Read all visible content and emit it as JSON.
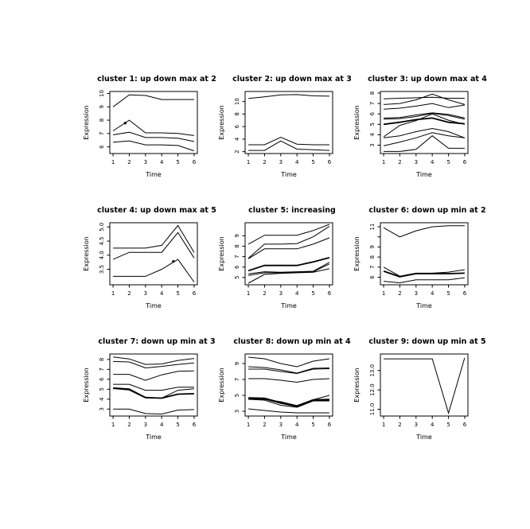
{
  "figure": {
    "background": "#ffffff",
    "line_color": "#000000",
    "text_color": "#000000"
  },
  "chart_data": [
    {
      "type": "line",
      "title": "cluster 1: up down max at 2",
      "xlabel": "Time",
      "ylabel": "Expression",
      "x": [
        1,
        2,
        3,
        4,
        5,
        6
      ],
      "xticks": [
        "1",
        "2",
        "3",
        "4",
        "5",
        "6"
      ],
      "yticks": [
        6,
        7,
        8,
        9,
        10
      ],
      "ytick_labels": [
        "6",
        "7",
        "8",
        "9",
        "10"
      ],
      "xlim": [
        0.8,
        6.2
      ],
      "ylim": [
        5.5,
        10.15
      ],
      "grid": false,
      "series": [
        {
          "name": "line-1",
          "values": [
            9.0,
            9.9,
            9.85,
            9.55,
            9.55,
            9.55
          ],
          "width": 1
        },
        {
          "name": "line-2",
          "values": [
            7.2,
            8.0,
            7.05,
            7.05,
            7.0,
            6.85
          ],
          "width": 1
        },
        {
          "name": "line-3",
          "values": [
            6.9,
            7.1,
            6.7,
            6.7,
            6.65,
            6.4
          ],
          "width": 1
        },
        {
          "name": "line-4",
          "values": [
            6.35,
            6.45,
            6.15,
            6.15,
            6.1,
            5.7
          ],
          "width": 1
        }
      ],
      "dots": [
        {
          "x": 1.75,
          "y": 7.78
        }
      ]
    },
    {
      "type": "line",
      "title": "cluster 2: up down max at 3",
      "xlabel": "Time",
      "ylabel": "Expression",
      "x": [
        1,
        2,
        3,
        4,
        5,
        6
      ],
      "xticks": [
        "1",
        "2",
        "3",
        "4",
        "5",
        "6"
      ],
      "yticks": [
        2,
        4,
        6,
        8,
        10
      ],
      "ytick_labels": [
        "2",
        "4",
        "6",
        "8",
        "10"
      ],
      "xlim": [
        0.8,
        6.2
      ],
      "ylim": [
        1.7,
        11.6
      ],
      "grid": false,
      "series": [
        {
          "name": "line-1",
          "values": [
            10.5,
            10.75,
            11.05,
            11.1,
            10.9,
            10.85
          ],
          "width": 1
        },
        {
          "name": "line-2",
          "values": [
            3.1,
            3.1,
            4.3,
            3.2,
            3.1,
            3.1
          ],
          "width": 1
        },
        {
          "name": "line-3",
          "values": [
            2.2,
            2.2,
            3.7,
            2.4,
            2.3,
            2.2
          ],
          "width": 1
        }
      ],
      "dots": []
    },
    {
      "type": "line",
      "title": "cluster 3: up down max at 4",
      "xlabel": "Time",
      "ylabel": "Expression",
      "x": [
        1,
        2,
        3,
        4,
        5,
        6
      ],
      "xticks": [
        "1",
        "2",
        "3",
        "4",
        "5",
        "6"
      ],
      "yticks": [
        3,
        4,
        5,
        6,
        7,
        8
      ],
      "ytick_labels": [
        "3",
        "4",
        "5",
        "6",
        "7",
        "8"
      ],
      "xlim": [
        0.8,
        6.2
      ],
      "ylim": [
        2.2,
        8.15
      ],
      "grid": false,
      "series": [
        {
          "name": "line-1",
          "values": [
            7.45,
            7.5,
            7.55,
            7.6,
            7.5,
            7.5
          ],
          "width": 1
        },
        {
          "name": "line-2",
          "values": [
            6.9,
            7.0,
            7.35,
            7.9,
            7.35,
            6.9
          ],
          "width": 1
        },
        {
          "name": "line-3",
          "values": [
            6.45,
            6.55,
            6.75,
            7.0,
            6.6,
            6.85
          ],
          "width": 1
        },
        {
          "name": "line-4",
          "values": [
            5.6,
            5.65,
            5.9,
            6.1,
            5.95,
            5.6
          ],
          "width": 1
        },
        {
          "name": "line-5",
          "values": [
            5.5,
            5.55,
            5.75,
            6.05,
            5.85,
            5.5
          ],
          "width": 1
        },
        {
          "name": "line-6",
          "values": [
            5.0,
            5.2,
            5.45,
            5.6,
            5.2,
            5.05
          ],
          "width": 1.8
        },
        {
          "name": "line-7",
          "values": [
            3.8,
            4.9,
            5.35,
            6.0,
            5.4,
            5.0
          ],
          "width": 1
        },
        {
          "name": "line-8",
          "values": [
            3.7,
            3.9,
            4.3,
            4.6,
            4.3,
            3.7
          ],
          "width": 1
        },
        {
          "name": "line-9",
          "values": [
            2.95,
            3.3,
            3.7,
            4.2,
            3.9,
            3.7
          ],
          "width": 1
        },
        {
          "name": "line-10",
          "values": [
            2.4,
            2.4,
            2.6,
            3.9,
            2.7,
            2.7
          ],
          "width": 1
        }
      ],
      "dots": []
    },
    {
      "type": "line",
      "title": "cluster 4: up down max at 5",
      "xlabel": "Time",
      "ylabel": "Expression",
      "x": [
        1,
        2,
        3,
        4,
        5,
        6
      ],
      "xticks": [
        "1",
        "2",
        "3",
        "4",
        "5",
        "6"
      ],
      "yticks": [
        3.5,
        4.0,
        4.5,
        5.0
      ],
      "ytick_labels": [
        "3.5",
        "4.0",
        "4.5",
        "5.0"
      ],
      "xlim": [
        0.8,
        6.2
      ],
      "ylim": [
        2.95,
        5.15
      ],
      "grid": false,
      "series": [
        {
          "name": "line-1",
          "values": [
            4.25,
            4.25,
            4.25,
            4.35,
            5.05,
            4.1
          ],
          "width": 1
        },
        {
          "name": "line-2",
          "values": [
            3.85,
            4.1,
            4.1,
            4.1,
            4.8,
            3.9
          ],
          "width": 1
        },
        {
          "name": "line-3",
          "values": [
            3.25,
            3.25,
            3.25,
            3.5,
            3.85,
            3.05
          ],
          "width": 1
        }
      ],
      "dots": [
        {
          "x": 4.72,
          "y": 3.78
        }
      ]
    },
    {
      "type": "line",
      "title": "cluster 5: increasing",
      "xlabel": "Time",
      "ylabel": "Expression",
      "x": [
        1,
        2,
        3,
        4,
        5,
        6
      ],
      "xticks": [
        "1",
        "2",
        "3",
        "4",
        "5",
        "6"
      ],
      "yticks": [
        5,
        6,
        7,
        8,
        9
      ],
      "ytick_labels": [
        "5",
        "6",
        "7",
        "8",
        "9"
      ],
      "xlim": [
        0.8,
        6.2
      ],
      "ylim": [
        4.3,
        10.25
      ],
      "grid": false,
      "series": [
        {
          "name": "line-1",
          "values": [
            8.2,
            9.05,
            9.05,
            9.05,
            9.5,
            10.1
          ],
          "width": 1
        },
        {
          "name": "line-2",
          "values": [
            6.85,
            8.2,
            8.2,
            8.25,
            8.9,
            9.9
          ],
          "width": 1
        },
        {
          "name": "line-3",
          "values": [
            6.8,
            7.75,
            7.75,
            7.75,
            8.2,
            8.8
          ],
          "width": 1
        },
        {
          "name": "line-4",
          "values": [
            5.65,
            6.15,
            6.15,
            6.15,
            6.5,
            6.9
          ],
          "width": 1.8
        },
        {
          "name": "line-5",
          "values": [
            5.35,
            5.55,
            5.5,
            5.55,
            5.6,
            6.45
          ],
          "width": 1
        },
        {
          "name": "line-6",
          "values": [
            5.2,
            5.45,
            5.45,
            5.5,
            5.55,
            6.3
          ],
          "width": 1
        },
        {
          "name": "line-7",
          "values": [
            4.45,
            5.3,
            5.4,
            5.45,
            5.5,
            5.85
          ],
          "width": 1
        }
      ],
      "dots": []
    },
    {
      "type": "line",
      "title": "cluster 6: down up min at 2",
      "xlabel": "Time",
      "ylabel": "Expression",
      "x": [
        1,
        2,
        3,
        4,
        5,
        6
      ],
      "xticks": [
        "1",
        "2",
        "3",
        "4",
        "5",
        "6"
      ],
      "yticks": [
        6,
        7,
        8,
        9,
        10,
        11
      ],
      "ytick_labels": [
        "6",
        "7",
        "8",
        "9",
        "",
        "11"
      ],
      "xlim": [
        0.8,
        6.2
      ],
      "ylim": [
        5.25,
        11.4
      ],
      "grid": false,
      "series": [
        {
          "name": "line-1",
          "values": [
            10.9,
            10.0,
            10.6,
            11.0,
            11.1,
            11.1
          ],
          "width": 1
        },
        {
          "name": "line-2",
          "values": [
            7.0,
            6.1,
            6.4,
            6.4,
            6.5,
            6.75
          ],
          "width": 1
        },
        {
          "name": "line-3",
          "values": [
            6.6,
            6.05,
            6.35,
            6.35,
            6.35,
            6.4
          ],
          "width": 1.8
        },
        {
          "name": "line-4",
          "values": [
            5.6,
            5.45,
            5.75,
            5.75,
            5.75,
            5.95
          ],
          "width": 1
        }
      ],
      "dots": []
    },
    {
      "type": "line",
      "title": "cluster 7: down up min at 3",
      "xlabel": "Time",
      "ylabel": "Expression",
      "x": [
        1,
        2,
        3,
        4,
        5,
        6
      ],
      "xticks": [
        "1",
        "2",
        "3",
        "4",
        "5",
        "6"
      ],
      "yticks": [
        3,
        4,
        5,
        6,
        7,
        8
      ],
      "ytick_labels": [
        "3",
        "4",
        "5",
        "6",
        "7",
        "8"
      ],
      "xlim": [
        0.8,
        6.2
      ],
      "ylim": [
        2.3,
        8.55
      ],
      "grid": false,
      "series": [
        {
          "name": "line-1",
          "values": [
            8.25,
            8.05,
            7.5,
            7.55,
            7.9,
            8.1
          ],
          "width": 1
        },
        {
          "name": "line-2",
          "values": [
            7.8,
            7.75,
            7.15,
            7.3,
            7.5,
            7.65
          ],
          "width": 1
        },
        {
          "name": "line-3",
          "values": [
            6.5,
            6.5,
            5.9,
            6.45,
            6.8,
            6.85
          ],
          "width": 1
        },
        {
          "name": "line-4",
          "values": [
            5.5,
            5.5,
            4.9,
            4.9,
            5.2,
            5.2
          ],
          "width": 1
        },
        {
          "name": "line-5",
          "values": [
            5.15,
            5.05,
            4.2,
            4.1,
            4.9,
            5.05
          ],
          "width": 1
        },
        {
          "name": "line-6",
          "values": [
            5.1,
            4.95,
            4.15,
            4.1,
            4.5,
            4.55
          ],
          "width": 1.8
        },
        {
          "name": "line-7",
          "values": [
            3.0,
            3.0,
            2.55,
            2.5,
            2.9,
            2.95
          ],
          "width": 1
        }
      ],
      "dots": []
    },
    {
      "type": "line",
      "title": "cluster 8: down up min at 4",
      "xlabel": "Time",
      "ylabel": "Expression",
      "x": [
        1,
        2,
        3,
        4,
        5,
        6
      ],
      "xticks": [
        "1",
        "2",
        "3",
        "4",
        "5",
        "6"
      ],
      "yticks": [
        3,
        5,
        7,
        9
      ],
      "ytick_labels": [
        "3",
        "5",
        "7",
        "9"
      ],
      "xlim": [
        0.8,
        6.2
      ],
      "ylim": [
        2.4,
        10.2
      ],
      "grid": false,
      "series": [
        {
          "name": "line-1",
          "values": [
            9.8,
            9.6,
            9.0,
            8.6,
            9.3,
            9.6
          ],
          "width": 1
        },
        {
          "name": "line-2",
          "values": [
            8.6,
            8.5,
            8.2,
            7.8,
            8.4,
            8.45
          ],
          "width": 1
        },
        {
          "name": "line-3",
          "values": [
            8.3,
            8.3,
            8.0,
            7.75,
            8.3,
            8.35
          ],
          "width": 1
        },
        {
          "name": "line-4",
          "values": [
            7.1,
            7.1,
            6.9,
            6.65,
            7.0,
            7.1
          ],
          "width": 1
        },
        {
          "name": "line-5",
          "values": [
            4.65,
            4.6,
            4.05,
            3.65,
            4.4,
            4.45
          ],
          "width": 2.4
        },
        {
          "name": "line-6",
          "values": [
            4.6,
            4.5,
            4.2,
            3.7,
            4.45,
            5.0
          ],
          "width": 1
        },
        {
          "name": "line-7",
          "values": [
            4.5,
            4.4,
            3.75,
            3.5,
            4.3,
            4.3
          ],
          "width": 1
        },
        {
          "name": "line-8",
          "values": [
            3.3,
            3.1,
            2.9,
            2.8,
            2.8,
            2.8
          ],
          "width": 1
        }
      ],
      "dots": []
    },
    {
      "type": "line",
      "title": "cluster 9: down up min at 5",
      "xlabel": "Time",
      "ylabel": "Expression",
      "x": [
        1,
        2,
        3,
        4,
        5,
        6
      ],
      "xticks": [
        "1",
        "2",
        "3",
        "4",
        "5",
        "6"
      ],
      "yticks": [
        11,
        12,
        13
      ],
      "ytick_labels": [
        "11.0",
        "12.0",
        "13.0"
      ],
      "xlim": [
        0.8,
        6.2
      ],
      "ylim": [
        10.65,
        13.85
      ],
      "grid": false,
      "series": [
        {
          "name": "line-1",
          "values": [
            13.6,
            13.6,
            13.6,
            13.6,
            10.8,
            13.65
          ],
          "width": 1
        }
      ],
      "dots": []
    }
  ]
}
